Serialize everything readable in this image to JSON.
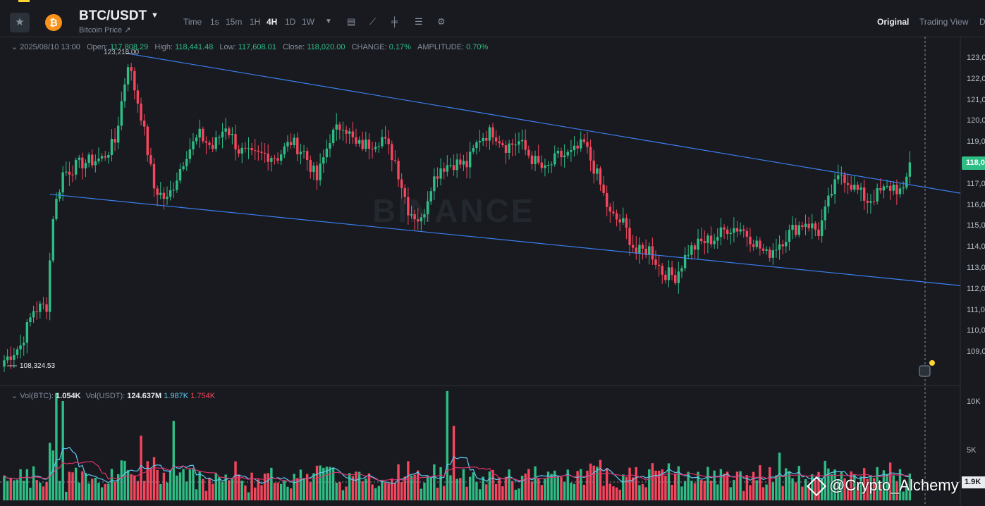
{
  "header": {
    "pair": "BTC/USDT",
    "subtitle": "Bitcoin Price ↗",
    "timeframes": [
      "Time",
      "1s",
      "15m",
      "1H",
      "4H",
      "1D",
      "1W"
    ],
    "active_timeframe": "4H",
    "right_tabs": [
      "Original",
      "Trading View",
      "D"
    ],
    "active_tab": "Original"
  },
  "ohlc": {
    "date": "2025/08/10 13:00",
    "open_label": "Open:",
    "open": "117,808.29",
    "high_label": "High:",
    "high": "118,441.48",
    "low_label": "Low:",
    "low": "117,608.01",
    "close_label": "Close:",
    "close": "118,020.00",
    "change_label": "CHANGE:",
    "change": "0.17%",
    "amplitude_label": "AMPLITUDE:",
    "amplitude": "0.70%"
  },
  "volume": {
    "btc_label": "Vol(BTC):",
    "btc": "1.054K",
    "usdt_label": "Vol(USDT):",
    "usdt": "124.637M",
    "ma1": "1.987K",
    "ma2": "1.754K"
  },
  "annotations": {
    "high_label": "123,218.00",
    "low_label": "108,324.53",
    "current_price": "118,0",
    "current_volume": "1.9K",
    "watermark": "BINANCE",
    "credit": "@Crypto_Alchemy"
  },
  "price_axis": [
    "123,0",
    "122,0",
    "121,0",
    "120,0",
    "119,0",
    "118,0",
    "117,0",
    "116,0",
    "115,0",
    "114,0",
    "113,0",
    "112,0",
    "111,0",
    "110,0",
    "109,0"
  ],
  "volume_axis": [
    "10K",
    "5K"
  ],
  "colors": {
    "up": "#2ebd85",
    "down": "#f6465d",
    "trendline": "#3c7ff0",
    "ma_fast": "#5fc9f3",
    "ma_slow": "#d9336b",
    "background": "#181a20"
  },
  "chart_data": {
    "type": "candlestick",
    "title": "",
    "interval": "4H",
    "price_range": [
      108000,
      123500
    ],
    "volume_range": [
      0,
      11000
    ],
    "key_points": {
      "swing_high": 123218.0,
      "swing_low": 108324.53,
      "last_close": 118020.0
    },
    "close_path_anchors": [
      [
        0,
        108600
      ],
      [
        5,
        109300
      ],
      [
        9,
        111000
      ],
      [
        13,
        111200
      ],
      [
        15,
        115500
      ],
      [
        18,
        117500
      ],
      [
        24,
        118000
      ],
      [
        30,
        118200
      ],
      [
        34,
        119000
      ],
      [
        38,
        122800
      ],
      [
        42,
        120300
      ],
      [
        46,
        116800
      ],
      [
        50,
        116200
      ],
      [
        56,
        118500
      ],
      [
        60,
        119300
      ],
      [
        64,
        118700
      ],
      [
        68,
        119800
      ],
      [
        72,
        118600
      ],
      [
        76,
        118300
      ],
      [
        80,
        118400
      ],
      [
        84,
        118300
      ],
      [
        88,
        119000
      ],
      [
        92,
        118500
      ],
      [
        96,
        117200
      ],
      [
        100,
        119200
      ],
      [
        104,
        119900
      ],
      [
        108,
        118800
      ],
      [
        112,
        118900
      ],
      [
        116,
        119200
      ],
      [
        120,
        118100
      ],
      [
        124,
        115800
      ],
      [
        128,
        115200
      ],
      [
        131,
        117000
      ],
      [
        134,
        117800
      ],
      [
        138,
        118000
      ],
      [
        142,
        117900
      ],
      [
        146,
        119200
      ],
      [
        150,
        119500
      ],
      [
        154,
        118800
      ],
      [
        158,
        119000
      ],
      [
        162,
        118200
      ],
      [
        166,
        117600
      ],
      [
        170,
        118300
      ],
      [
        174,
        118400
      ],
      [
        178,
        118900
      ],
      [
        182,
        117400
      ],
      [
        186,
        115500
      ],
      [
        190,
        115100
      ],
      [
        194,
        113700
      ],
      [
        198,
        113900
      ],
      [
        202,
        112800
      ],
      [
        206,
        112600
      ],
      [
        210,
        113800
      ],
      [
        214,
        114200
      ],
      [
        218,
        114400
      ],
      [
        222,
        114900
      ],
      [
        226,
        114900
      ],
      [
        230,
        114300
      ],
      [
        234,
        113600
      ],
      [
        238,
        114200
      ],
      [
        242,
        114800
      ],
      [
        246,
        115200
      ],
      [
        250,
        114700
      ],
      [
        254,
        116600
      ],
      [
        257,
        117500
      ],
      [
        261,
        116800
      ],
      [
        265,
        116200
      ],
      [
        269,
        116600
      ],
      [
        273,
        116900
      ],
      [
        276,
        116500
      ],
      [
        278,
        118020
      ]
    ],
    "volume_spikes": [
      {
        "index": 16,
        "volume": 10800
      },
      {
        "index": 18,
        "volume": 10000
      },
      {
        "index": 42,
        "volume": 6500
      },
      {
        "index": 52,
        "volume": 8000
      },
      {
        "index": 136,
        "volume": 11000
      },
      {
        "index": 138,
        "volume": 7500
      },
      {
        "index": 238,
        "volume": 4800
      },
      {
        "index": 272,
        "volume": 3800
      }
    ],
    "trendlines": [
      {
        "name": "upper",
        "from": {
          "index": 38,
          "price": 123200
        },
        "to": {
          "index": 284,
          "price": 116800
        }
      },
      {
        "name": "lower",
        "from": {
          "index": 14,
          "price": 116500
        },
        "to": {
          "index": 284,
          "price": 112300
        }
      }
    ]
  }
}
